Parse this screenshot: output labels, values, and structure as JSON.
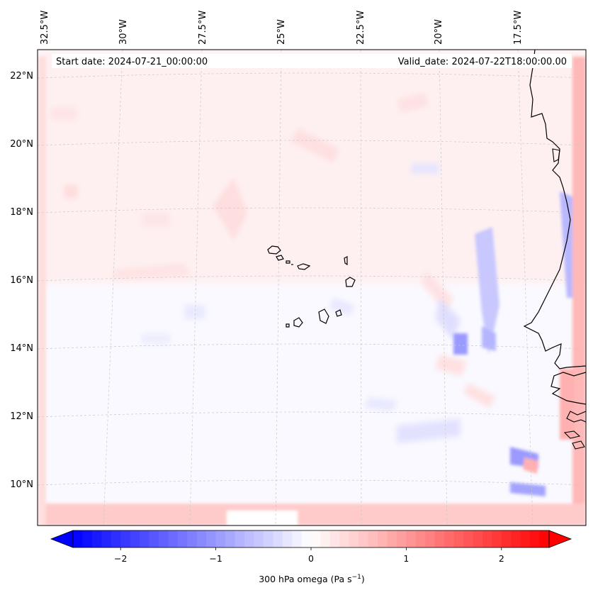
{
  "map": {
    "start_date_label": "Start date: 2024-07-21_00:00:00",
    "valid_date_label": "Valid_date: 2024-07-22T18:00:00.00",
    "longitude_labels": [
      "32.5°W",
      "30°W",
      "27.5°W",
      "25°W",
      "22.5°W",
      "20°W",
      "17.5°W"
    ],
    "latitude_labels": [
      "22°N",
      "20°N",
      "18°N",
      "16°N",
      "14°N",
      "12°N",
      "10°N"
    ],
    "grid_color": "#c8c8c8",
    "coastline_color": "#000000",
    "field_variable": "300 hPa omega",
    "colormap": "bwr"
  },
  "colorbar": {
    "label_text": "300 hPa omega (Pa s",
    "label_exp": "−1",
    "label_close": ")",
    "tick_labels": [
      "−2",
      "−1",
      "0",
      "1",
      "2"
    ],
    "tick_values": [
      -2,
      -1,
      0,
      1,
      2
    ],
    "vmin": -2.5,
    "vmax": 2.5,
    "low_color": "#0000ff",
    "mid_color": "#ffffff",
    "high_color": "#ff0000"
  }
}
